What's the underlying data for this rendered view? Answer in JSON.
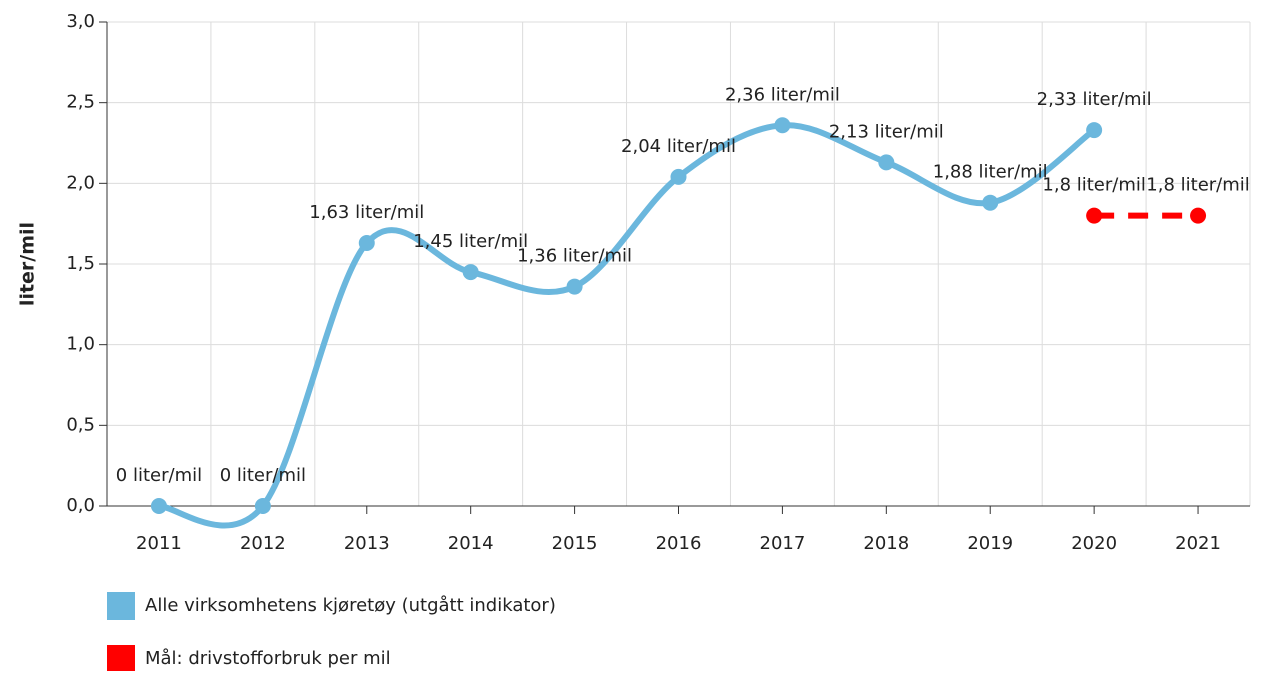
{
  "chart_data": {
    "type": "line",
    "ylabel": "liter/mil",
    "categories": [
      "2011",
      "2012",
      "2013",
      "2014",
      "2015",
      "2016",
      "2017",
      "2018",
      "2019",
      "2020",
      "2021"
    ],
    "series": [
      {
        "name": "Alle virksomhetens kjøretøy (utgått indikator)",
        "color": "#6bb7dd",
        "dashed": false,
        "values": [
          0,
          0,
          1.63,
          1.45,
          1.36,
          2.04,
          2.36,
          2.13,
          1.88,
          2.33,
          null
        ],
        "value_labels": [
          "0 liter/mil",
          "0 liter/mil",
          "1,63 liter/mil",
          "1,45 liter/mil",
          "1,36 liter/mil",
          "2,04 liter/mil",
          "2,36 liter/mil",
          "2,13 liter/mil",
          "1,88 liter/mil",
          "2,33 liter/mil",
          null
        ]
      },
      {
        "name": "Mål: drivstofforbruk per mil",
        "color": "#ff0000",
        "dashed": true,
        "values": [
          null,
          null,
          null,
          null,
          null,
          null,
          null,
          null,
          null,
          1.8,
          1.8
        ],
        "value_labels": [
          null,
          null,
          null,
          null,
          null,
          null,
          null,
          null,
          null,
          "1,8 liter/mil",
          "1,8 liter/mil"
        ]
      }
    ],
    "ylim": [
      0,
      3
    ],
    "yticks": [
      {
        "value": 0,
        "label": "0,0"
      },
      {
        "value": 0.5,
        "label": "0,5"
      },
      {
        "value": 1,
        "label": "1,0"
      },
      {
        "value": 1.5,
        "label": "1,5"
      },
      {
        "value": 2,
        "label": "2,0"
      },
      {
        "value": 2.5,
        "label": "2,5"
      },
      {
        "value": 3,
        "label": "3,0"
      }
    ],
    "grid": true
  }
}
